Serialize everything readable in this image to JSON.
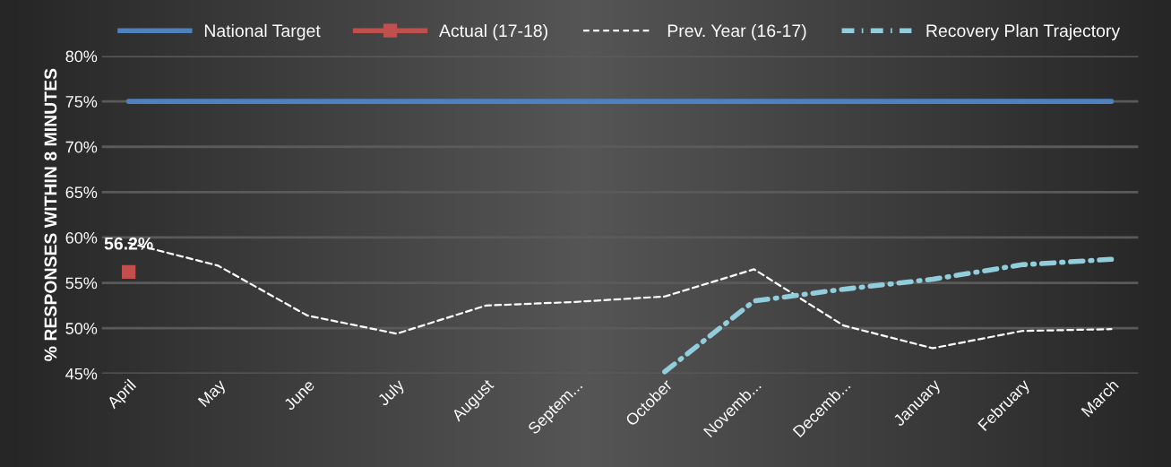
{
  "chart_data": {
    "type": "line",
    "ylabel": "% RESPONSES WITHIN 8 MINUTES",
    "categories": [
      "April",
      "May",
      "June",
      "July",
      "August",
      "Septem...",
      "October",
      "Novemb...",
      "Decemb...",
      "January",
      "February",
      "March"
    ],
    "series": [
      {
        "name": "National Target",
        "color": "#4f81bd",
        "line_style": "solid",
        "marker": "none",
        "values": [
          75,
          75,
          75,
          75,
          75,
          75,
          75,
          75,
          75,
          75,
          75,
          75
        ]
      },
      {
        "name": "Actual (17-18)",
        "color": "#c0504d",
        "line_style": "solid",
        "marker": "square",
        "values": [
          56.2,
          null,
          null,
          null,
          null,
          null,
          null,
          null,
          null,
          null,
          null,
          null
        ],
        "value_labels": [
          "56.2%",
          null,
          null,
          null,
          null,
          null,
          null,
          null,
          null,
          null,
          null,
          null
        ]
      },
      {
        "name": "Prev. Year (16-17)",
        "color": "#ffffff",
        "line_style": "dashed",
        "marker": "none",
        "values": [
          59.4,
          56.9,
          51.4,
          49.4,
          52.5,
          52.9,
          53.5,
          56.5,
          50.3,
          47.8,
          49.7,
          49.9
        ]
      },
      {
        "name": "Recovery Plan Trajectory",
        "color": "#92cddc",
        "line_style": "dashdot",
        "marker": "none",
        "values": [
          null,
          null,
          null,
          null,
          null,
          null,
          45.2,
          53.0,
          54.3,
          55.4,
          57.0,
          57.6
        ]
      }
    ],
    "ylim": [
      45,
      80
    ],
    "yticks": [
      {
        "value": 45,
        "label": "45%"
      },
      {
        "value": 50,
        "label": "50%"
      },
      {
        "value": 55,
        "label": "55%"
      },
      {
        "value": 60,
        "label": "60%"
      },
      {
        "value": 65,
        "label": "65%"
      },
      {
        "value": 70,
        "label": "70%"
      },
      {
        "value": 75,
        "label": "75%"
      },
      {
        "value": 80,
        "label": "80%"
      }
    ],
    "grid": "y",
    "legend": "top"
  }
}
